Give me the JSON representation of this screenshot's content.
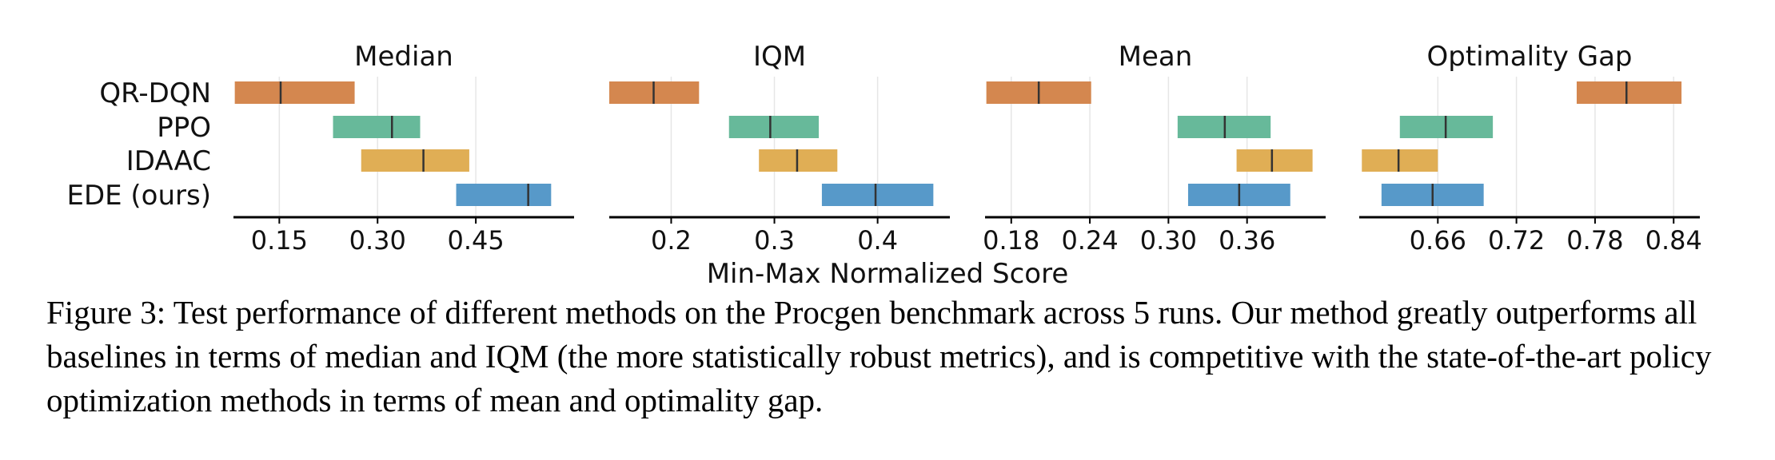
{
  "chart_data": {
    "type": "interval",
    "methods": [
      "QR-DQN",
      "PPO",
      "IDAAC",
      "EDE (ours)"
    ],
    "colors": [
      "#d4874f",
      "#67b99a",
      "#e0ae55",
      "#5799c9"
    ],
    "xlabel": "Min-Max Normalized Score",
    "panels": [
      {
        "title": "Median",
        "xlim": [
          0.08,
          0.6
        ],
        "ticks": [
          0.15,
          0.3,
          0.45
        ],
        "tick_labels": [
          "0.15",
          "0.30",
          "0.45"
        ],
        "intervals": [
          {
            "method": "QR-DQN",
            "low": 0.082,
            "high": 0.265,
            "point": 0.152
          },
          {
            "method": "PPO",
            "low": 0.232,
            "high": 0.365,
            "point": 0.322
          },
          {
            "method": "IDAAC",
            "low": 0.275,
            "high": 0.44,
            "point": 0.37
          },
          {
            "method": "EDE (ours)",
            "low": 0.42,
            "high": 0.565,
            "point": 0.53
          }
        ]
      },
      {
        "title": "IQM",
        "xlim": [
          0.14,
          0.47
        ],
        "ticks": [
          0.2,
          0.3,
          0.4
        ],
        "tick_labels": [
          "0.2",
          "0.3",
          "0.4"
        ],
        "intervals": [
          {
            "method": "QR-DQN",
            "low": 0.14,
            "high": 0.227,
            "point": 0.183
          },
          {
            "method": "PPO",
            "low": 0.256,
            "high": 0.343,
            "point": 0.296
          },
          {
            "method": "IDAAC",
            "low": 0.285,
            "high": 0.361,
            "point": 0.322
          },
          {
            "method": "EDE (ours)",
            "low": 0.346,
            "high": 0.454,
            "point": 0.398
          }
        ]
      },
      {
        "title": "Mean",
        "xlim": [
          0.16,
          0.42
        ],
        "ticks": [
          0.18,
          0.24,
          0.3,
          0.36
        ],
        "tick_labels": [
          "0.18",
          "0.24",
          "0.30",
          "0.36"
        ],
        "intervals": [
          {
            "method": "QR-DQN",
            "low": 0.161,
            "high": 0.241,
            "point": 0.201
          },
          {
            "method": "PPO",
            "low": 0.307,
            "high": 0.378,
            "point": 0.343
          },
          {
            "method": "IDAAC",
            "low": 0.352,
            "high": 0.41,
            "point": 0.379
          },
          {
            "method": "EDE (ours)",
            "low": 0.315,
            "high": 0.393,
            "point": 0.354
          }
        ]
      },
      {
        "title": "Optimality Gap",
        "xlim": [
          0.6,
          0.86
        ],
        "ticks": [
          0.66,
          0.72,
          0.78,
          0.84
        ],
        "tick_labels": [
          "0.66",
          "0.72",
          "0.78",
          "0.84"
        ],
        "intervals": [
          {
            "method": "QR-DQN",
            "low": 0.766,
            "high": 0.846,
            "point": 0.804
          },
          {
            "method": "PPO",
            "low": 0.631,
            "high": 0.702,
            "point": 0.666
          },
          {
            "method": "IDAAC",
            "low": 0.602,
            "high": 0.66,
            "point": 0.63
          },
          {
            "method": "EDE (ours)",
            "low": 0.617,
            "high": 0.695,
            "point": 0.656
          }
        ]
      }
    ]
  },
  "caption": "Figure 3: Test performance of different methods on the Procgen benchmark across 5 runs. Our method greatly outperforms all baselines in terms of median and IQM (the more statistically robust metrics), and is competitive with the state-of-the-art policy optimization methods in terms of mean and optimality gap."
}
